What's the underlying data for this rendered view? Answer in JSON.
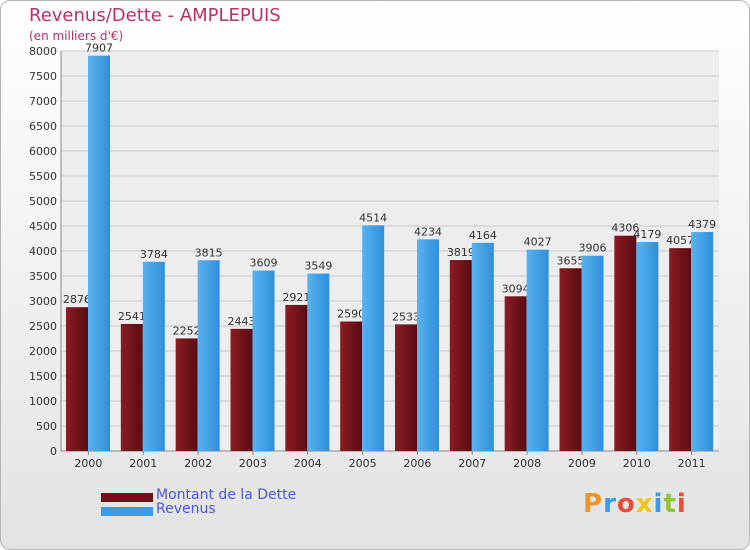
{
  "title": "Revenus/Dette - AMPLEPUIS",
  "subtitle": "(en milliers d'€)",
  "logo_text": "Proxiti",
  "colors": {
    "title": "#b9306d",
    "dette": "#6e1119",
    "revenus": "#3a9ce6",
    "legend_text": "#4a57e0"
  },
  "legend": [
    {
      "label": "Montant de la Dette",
      "color": "#6e1119"
    },
    {
      "label": "Revenus",
      "color": "#3a9ce6"
    }
  ],
  "chart_data": {
    "type": "bar",
    "title": "Revenus/Dette - AMPLEPUIS",
    "subtitle": "(en milliers d'€)",
    "categories": [
      "2000",
      "2001",
      "2002",
      "2003",
      "2004",
      "2005",
      "2006",
      "2007",
      "2008",
      "2009",
      "2010",
      "2011"
    ],
    "series": [
      {
        "name": "Montant de la Dette",
        "color": "#6e1119",
        "values": [
          2876,
          2541,
          2252,
          2443,
          2921,
          2590,
          2533,
          3819,
          3094,
          3655,
          4306,
          4057
        ]
      },
      {
        "name": "Revenus",
        "color": "#3a9ce6",
        "values": [
          7907,
          3784,
          3815,
          3609,
          3549,
          4514,
          4234,
          4164,
          4027,
          3906,
          4179,
          4379
        ]
      }
    ],
    "ylim": [
      0,
      8000
    ],
    "ytick_step": 500,
    "grid": true,
    "legend_position": "bottom-left"
  }
}
